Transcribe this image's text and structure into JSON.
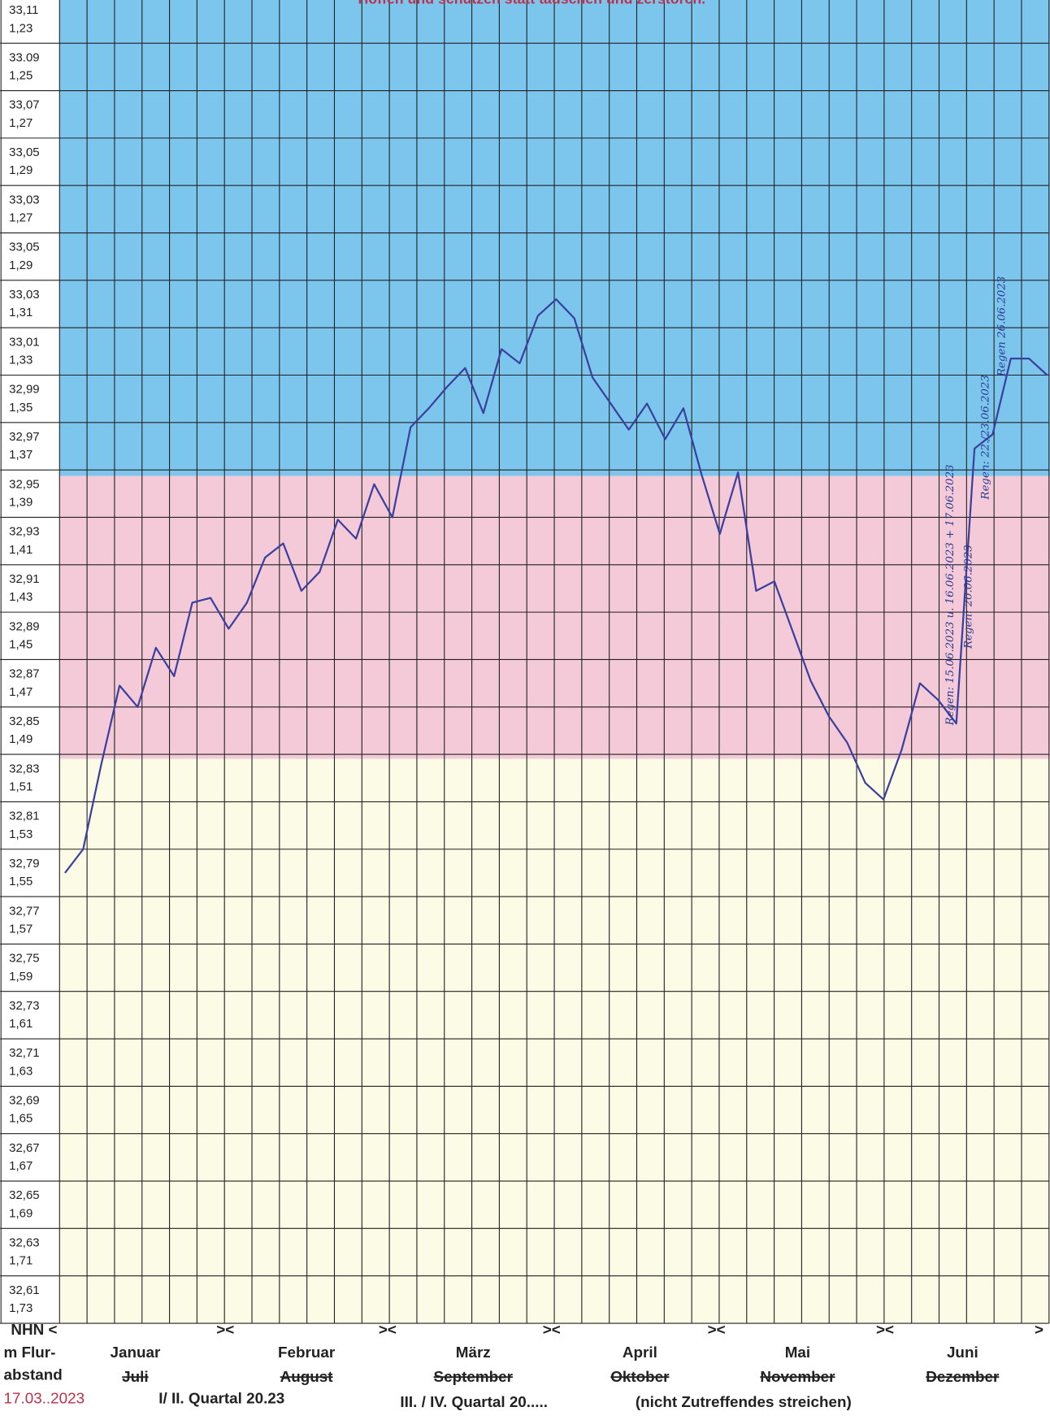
{
  "chart_data": {
    "type": "line",
    "title": "Hoffen und schützen statt täuschen und zerstören.",
    "row_labels": [
      [
        "33,11",
        "1,23"
      ],
      [
        "33.09",
        "1,25"
      ],
      [
        "33,07",
        "1,27"
      ],
      [
        "33,05",
        "1,29"
      ],
      [
        "33,03",
        "1,27"
      ],
      [
        "33,05",
        "1,29"
      ],
      [
        "33,03",
        "1,31"
      ],
      [
        "33,01",
        "1,33"
      ],
      [
        "32,99",
        "1,35"
      ],
      [
        "32,97",
        "1,37"
      ],
      [
        "32,95",
        "1,39"
      ],
      [
        "32,93",
        "1,41"
      ],
      [
        "32,91",
        "1,43"
      ],
      [
        "32,89",
        "1,45"
      ],
      [
        "32,87",
        "1,47"
      ],
      [
        "32,85",
        "1,49"
      ],
      [
        "32,83",
        "1,51"
      ],
      [
        "32,81",
        "1,53"
      ],
      [
        "32,79",
        "1,55"
      ],
      [
        "32,77",
        "1,57"
      ],
      [
        "32,75",
        "1,59"
      ],
      [
        "32,73",
        "1,61"
      ],
      [
        "32,71",
        "1,63"
      ],
      [
        "32,69",
        "1,65"
      ],
      [
        "32,67",
        "1,67"
      ],
      [
        "32,65",
        "1,69"
      ],
      [
        "32,63",
        "1,71"
      ],
      [
        "32,61",
        "1,73"
      ]
    ],
    "axis_label": [
      "NHN <",
      "m Flur-",
      "abstand"
    ],
    "date": "17.03..2023",
    "months": [
      "Januar",
      "Februar",
      "März",
      "April",
      "Mai",
      "Juni"
    ],
    "months_struck": [
      "Juli",
      "August",
      "September",
      "Oktober",
      "November",
      "Dezember"
    ],
    "separator": "><",
    "end_marker": ">",
    "quarter_1": "I/ II. Quartal 20.23",
    "quarter_2": "III. / IV. Quartal 20.....",
    "note": "(nicht Zutreffendes streichen)",
    "annotations": [
      "Regen: 15.06.2023 u. 16.06.2023 + 17.06.2023",
      "Regen: 20.06.2023",
      "Regen: 22./23.06.2023",
      "Regen 26.06.2023"
    ],
    "ylim": [
      32.59,
      33.15
    ],
    "color": "#3a3f9e",
    "values": [
      32.78,
      32.79,
      32.826,
      32.859,
      32.85,
      32.875,
      32.863,
      32.894,
      32.896,
      32.883,
      32.894,
      32.913,
      32.919,
      32.899,
      32.907,
      32.929,
      32.921,
      32.944,
      32.93,
      32.968,
      32.976,
      32.985,
      32.993,
      32.974,
      33.001,
      32.995,
      33.015,
      33.022,
      33.014,
      32.989,
      32.978,
      32.967,
      32.978,
      32.963,
      32.976,
      32.948,
      32.923,
      32.949,
      32.899,
      32.903,
      32.882,
      32.861,
      32.846,
      32.835,
      32.818,
      32.811,
      32.832,
      32.86,
      32.853,
      32.843,
      32.959,
      32.965,
      32.997,
      32.997,
      32.99
    ]
  }
}
